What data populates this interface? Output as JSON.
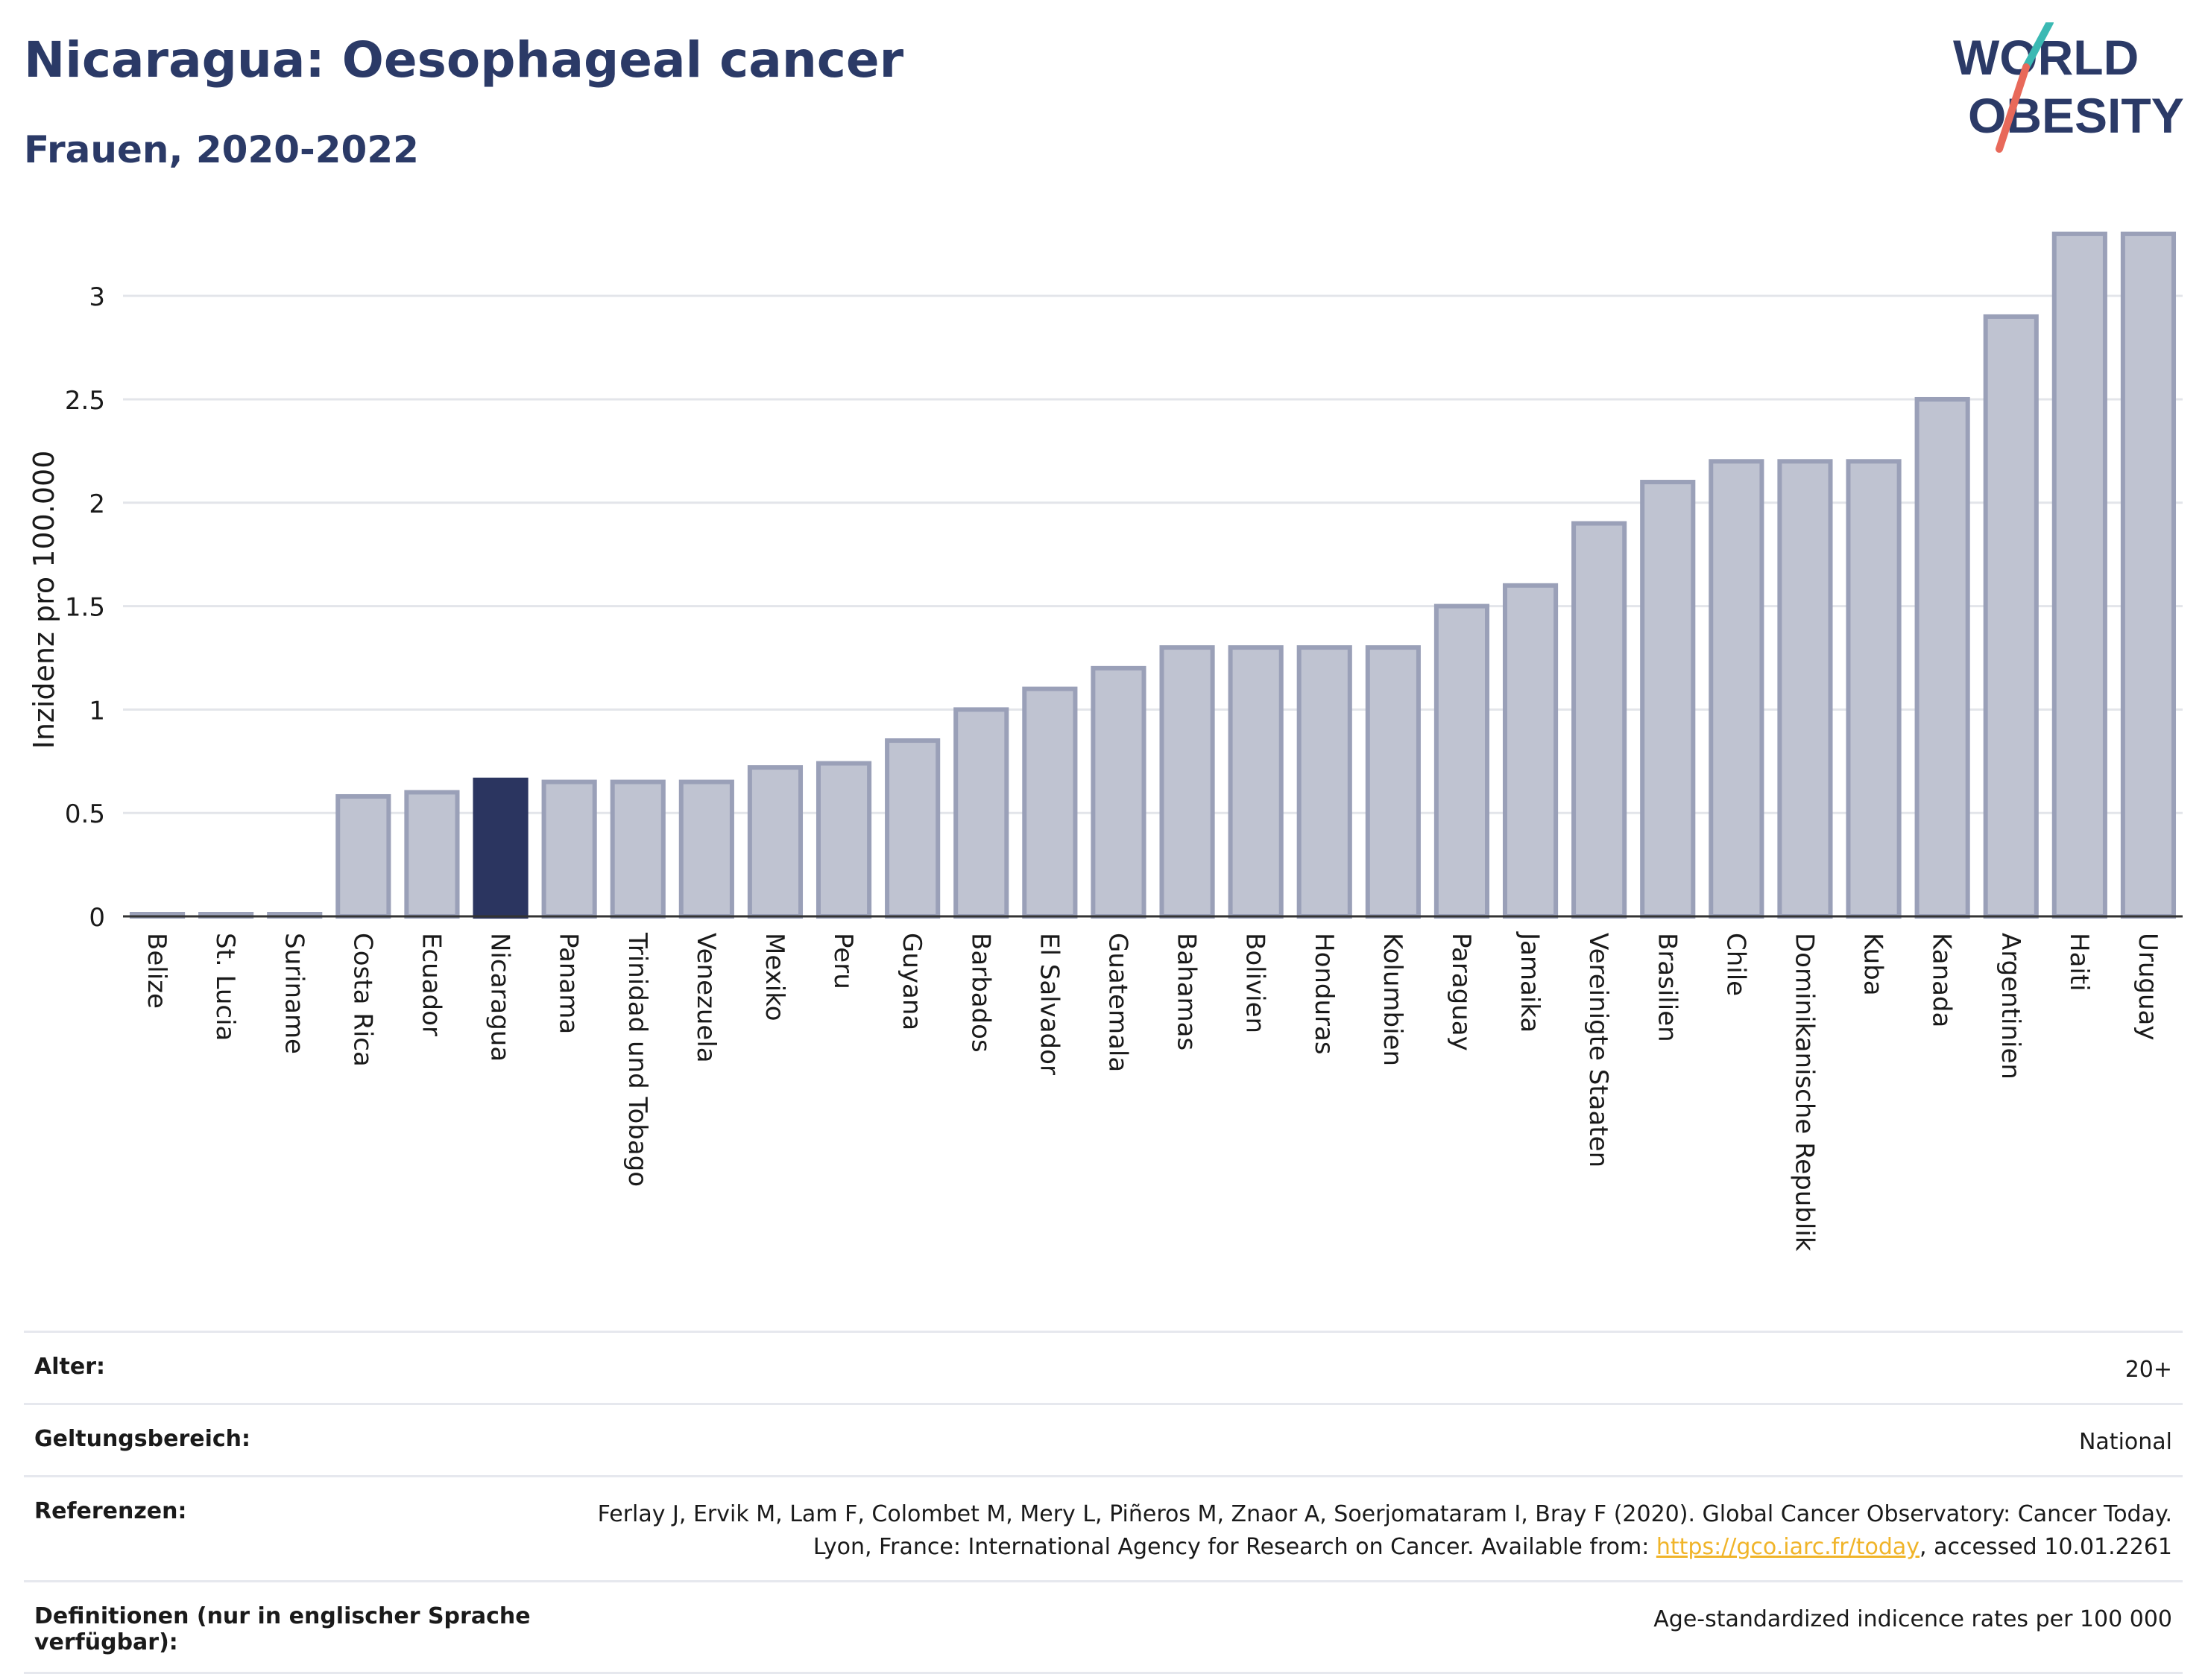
{
  "title": "Nicaragua: Oesophageal cancer",
  "subtitle": "Frauen, 2020-2022",
  "logo": {
    "line1": "WORLD",
    "line2": "OBESITY"
  },
  "colors": {
    "highlight": "#2b3560",
    "bar_fill": "#bfc3d1",
    "bar_stroke": "#9aa0b8",
    "title": "#2b3a67",
    "link": "#f0b429",
    "logo_teal": "#3bb9b3",
    "logo_coral": "#e8695a"
  },
  "chart_data": {
    "type": "bar",
    "ylabel": "Inzidenz pro 100.000",
    "ylim": [
      0,
      3.35
    ],
    "yticks": [
      0,
      0.5,
      1,
      1.5,
      2,
      2.5,
      3
    ],
    "ytick_labels": [
      "0",
      "0.5",
      "1",
      "1.5",
      "2",
      "2.5",
      "3"
    ],
    "grid": true,
    "highlight": "Nicaragua",
    "categories": [
      "Belize",
      "St. Lucia",
      "Suriname",
      "Costa Rica",
      "Ecuador",
      "Nicaragua",
      "Panama",
      "Trinidad und Tobago",
      "Venezuela",
      "Mexiko",
      "Peru",
      "Guyana",
      "Barbados",
      "El Salvador",
      "Guatemala",
      "Bahamas",
      "Bolivien",
      "Honduras",
      "Kolumbien",
      "Paraguay",
      "Jamaika",
      "Vereinigte Staaten",
      "Brasilien",
      "Chile",
      "Dominikanische Republik",
      "Kuba",
      "Kanada",
      "Argentinien",
      "Haiti",
      "Uruguay"
    ],
    "values": [
      0.01,
      0.01,
      0.01,
      0.58,
      0.6,
      0.66,
      0.65,
      0.65,
      0.65,
      0.72,
      0.74,
      0.85,
      1.0,
      1.1,
      1.2,
      1.3,
      1.3,
      1.3,
      1.3,
      1.5,
      1.6,
      1.9,
      2.1,
      2.2,
      2.2,
      2.2,
      2.5,
      2.9,
      3.3,
      3.3
    ]
  },
  "meta": {
    "age_label": "Alter:",
    "age_value": "20+",
    "scope_label": "Geltungsbereich:",
    "scope_value": "National",
    "ref_label": "Referenzen:",
    "ref_text_1": "Ferlay J, Ervik M, Lam F, Colombet M, Mery L, Piñeros M, Znaor A, Soerjomataram I, Bray F (2020). Global Cancer Observatory: Cancer Today. Lyon, France: International Agency for Research on Cancer. Available from: ",
    "ref_link": "https://gco.iarc.fr/today",
    "ref_text_2": ", accessed 10.01.2261",
    "def_label": "Definitionen (nur in englischer Sprache verfügbar):",
    "def_value": "Age-standardized indicence rates per 100 000"
  }
}
